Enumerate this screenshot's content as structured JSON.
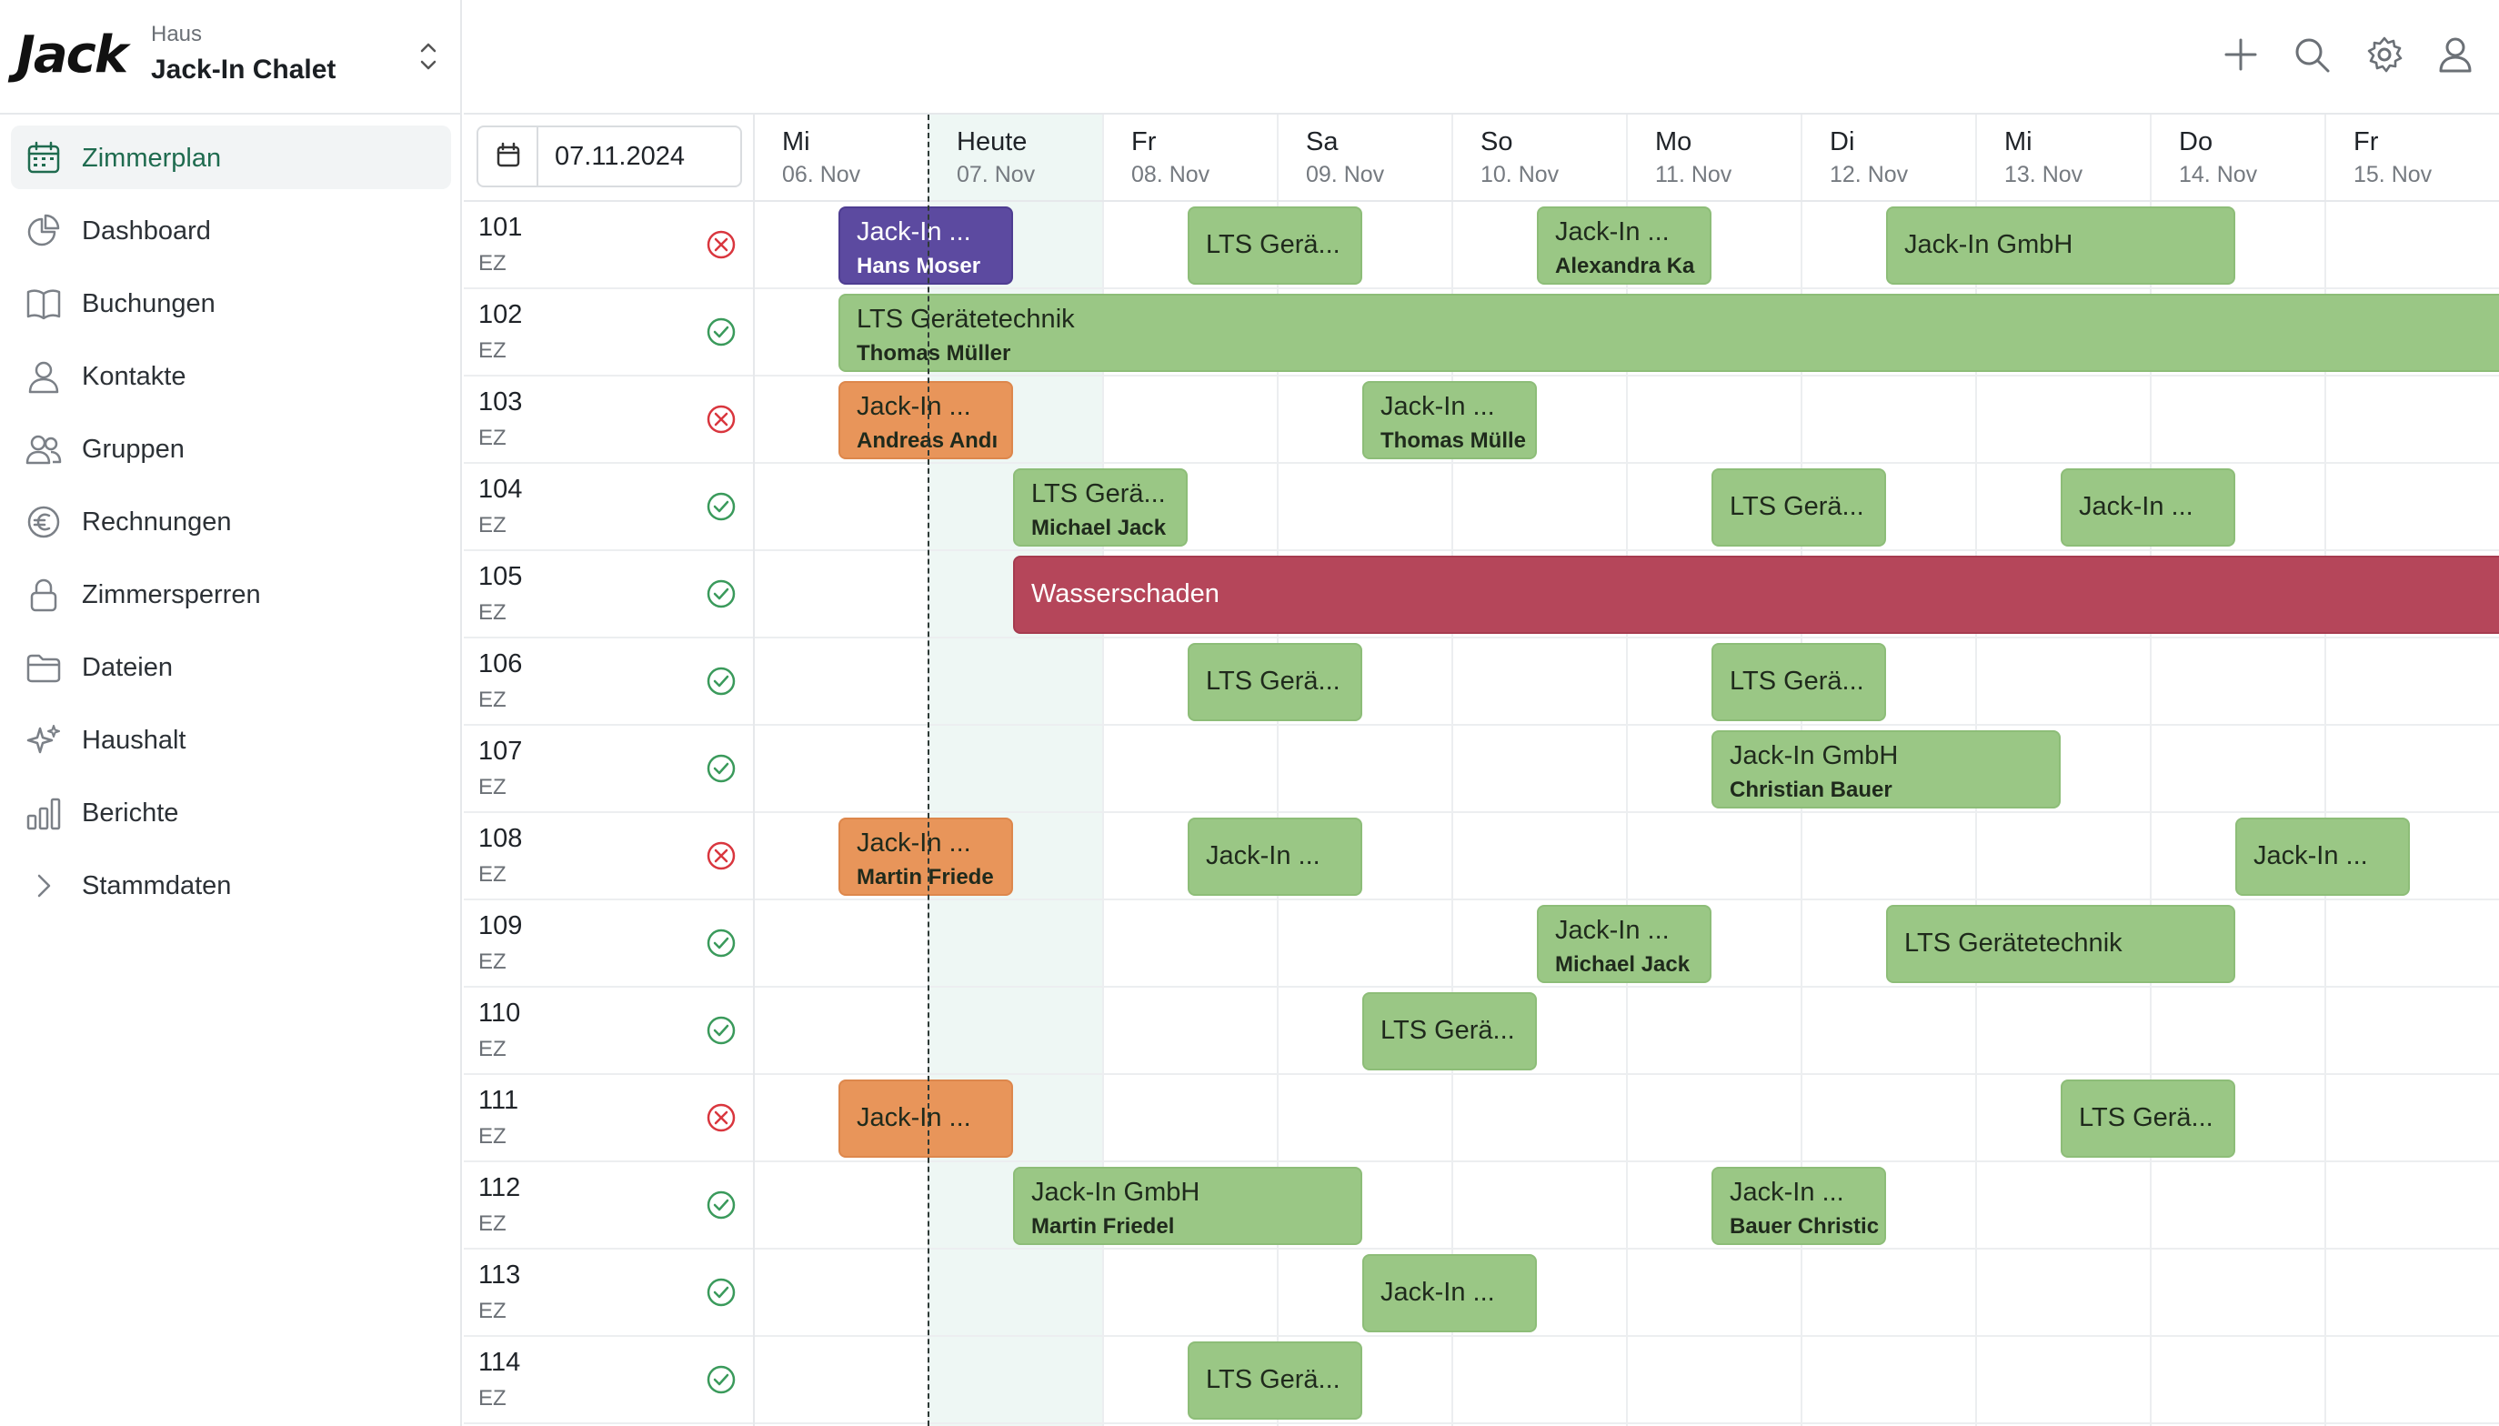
{
  "brand": {
    "logo_text": "Jack",
    "house_label": "Haus",
    "house_name": "Jack-In Chalet"
  },
  "nav": [
    {
      "label": "Zimmerplan",
      "icon": "calendar-icon",
      "active": true
    },
    {
      "label": "Dashboard",
      "icon": "pie-chart-icon"
    },
    {
      "label": "Buchungen",
      "icon": "book-icon"
    },
    {
      "label": "Kontakte",
      "icon": "user-icon"
    },
    {
      "label": "Gruppen",
      "icon": "users-icon"
    },
    {
      "label": "Rechnungen",
      "icon": "euro-icon"
    },
    {
      "label": "Zimmersperren",
      "icon": "lock-icon"
    },
    {
      "label": "Dateien",
      "icon": "folder-icon"
    },
    {
      "label": "Haushalt",
      "icon": "sparkles-icon"
    },
    {
      "label": "Berichte",
      "icon": "bar-chart-icon"
    },
    {
      "label": "Stammdaten",
      "icon": "chevron-right-icon"
    }
  ],
  "toolbar": {
    "icons": [
      "plus-icon",
      "search-icon",
      "gear-icon",
      "account-icon"
    ]
  },
  "date_picker": {
    "value": "07.11.2024"
  },
  "days": [
    {
      "name": "Mi",
      "date": "06. Nov"
    },
    {
      "name": "Heute",
      "date": "07. Nov",
      "today": true
    },
    {
      "name": "Fr",
      "date": "08. Nov"
    },
    {
      "name": "Sa",
      "date": "09. Nov"
    },
    {
      "name": "So",
      "date": "10. Nov"
    },
    {
      "name": "Mo",
      "date": "11. Nov"
    },
    {
      "name": "Di",
      "date": "12. Nov"
    },
    {
      "name": "Mi",
      "date": "13. Nov"
    },
    {
      "name": "Do",
      "date": "14. Nov"
    },
    {
      "name": "Fr",
      "date": "15. Nov"
    }
  ],
  "rooms": [
    {
      "number": "101",
      "type": "EZ",
      "status": "dirty",
      "bookings": [
        {
          "title": "Jack-In ...",
          "guest": "Hans Moser",
          "color": "purple",
          "start": 0,
          "nights": 1
        },
        {
          "title": "LTS Gerä...",
          "color": "green",
          "start": 2,
          "nights": 1
        },
        {
          "title": "Jack-In ...",
          "guest": "Alexandra Ka",
          "color": "green",
          "start": 4,
          "nights": 1
        },
        {
          "title": "Jack-In GmbH",
          "color": "green",
          "start": 6,
          "nights": 2
        }
      ]
    },
    {
      "number": "102",
      "type": "EZ",
      "status": "clean",
      "bookings": [
        {
          "title": "LTS Gerätetechnik",
          "guest": "Thomas Müller",
          "color": "green",
          "start": 0,
          "nights": 10
        }
      ]
    },
    {
      "number": "103",
      "type": "EZ",
      "status": "dirty",
      "bookings": [
        {
          "title": "Jack-In ...",
          "guest": "Andreas Andı",
          "color": "orange",
          "start": 0,
          "nights": 1
        },
        {
          "title": "Jack-In ...",
          "guest": "Thomas Mülle",
          "color": "green",
          "start": 3,
          "nights": 1
        }
      ]
    },
    {
      "number": "104",
      "type": "EZ",
      "status": "clean",
      "bookings": [
        {
          "title": "LTS Gerä...",
          "guest": "Michael Jack",
          "color": "green",
          "start": 1,
          "nights": 1
        },
        {
          "title": "LTS Gerä...",
          "color": "green",
          "start": 5,
          "nights": 1
        },
        {
          "title": "Jack-In ...",
          "color": "green",
          "start": 7,
          "nights": 1
        }
      ]
    },
    {
      "number": "105",
      "type": "EZ",
      "status": "clean",
      "bookings": [
        {
          "title": "Wasserschaden",
          "color": "red",
          "start": 1,
          "nights": 9
        }
      ]
    },
    {
      "number": "106",
      "type": "EZ",
      "status": "clean",
      "bookings": [
        {
          "title": "LTS Gerä...",
          "color": "green",
          "start": 2,
          "nights": 1
        },
        {
          "title": "LTS Gerä...",
          "color": "green",
          "start": 5,
          "nights": 1
        }
      ]
    },
    {
      "number": "107",
      "type": "EZ",
      "status": "clean",
      "bookings": [
        {
          "title": "Jack-In GmbH",
          "guest": "Christian Bauer",
          "color": "green",
          "start": 5,
          "nights": 2
        }
      ]
    },
    {
      "number": "108",
      "type": "EZ",
      "status": "dirty",
      "bookings": [
        {
          "title": "Jack-In ...",
          "guest": "Martin Friede",
          "color": "orange",
          "start": 0,
          "nights": 1
        },
        {
          "title": "Jack-In ...",
          "color": "green",
          "start": 2,
          "nights": 1
        },
        {
          "title": "Jack-In ...",
          "color": "green",
          "start": 8,
          "nights": 1
        }
      ]
    },
    {
      "number": "109",
      "type": "EZ",
      "status": "clean",
      "bookings": [
        {
          "title": "Jack-In ...",
          "guest": "Michael Jack",
          "color": "green",
          "start": 4,
          "nights": 1
        },
        {
          "title": "LTS Gerätetechnik",
          "color": "green",
          "start": 6,
          "nights": 2
        }
      ]
    },
    {
      "number": "110",
      "type": "EZ",
      "status": "clean",
      "bookings": [
        {
          "title": "LTS Gerä...",
          "color": "green",
          "start": 3,
          "nights": 1
        }
      ]
    },
    {
      "number": "111",
      "type": "EZ",
      "status": "dirty",
      "bookings": [
        {
          "title": "Jack-In ...",
          "color": "orange",
          "start": 0,
          "nights": 1
        },
        {
          "title": "LTS Gerä...",
          "color": "green",
          "start": 7,
          "nights": 1
        }
      ]
    },
    {
      "number": "112",
      "type": "EZ",
      "status": "clean",
      "bookings": [
        {
          "title": "Jack-In GmbH",
          "guest": "Martin Friedel",
          "color": "green",
          "start": 1,
          "nights": 2
        },
        {
          "title": "Jack-In ...",
          "guest": "Bauer Christic",
          "color": "green",
          "start": 5,
          "nights": 1
        }
      ]
    },
    {
      "number": "113",
      "type": "EZ",
      "status": "clean",
      "bookings": [
        {
          "title": "Jack-In ...",
          "color": "green",
          "start": 3,
          "nights": 1
        }
      ]
    },
    {
      "number": "114",
      "type": "EZ",
      "status": "clean",
      "bookings": [
        {
          "title": "LTS Gerä...",
          "color": "green",
          "start": 2,
          "nights": 1
        }
      ]
    }
  ]
}
